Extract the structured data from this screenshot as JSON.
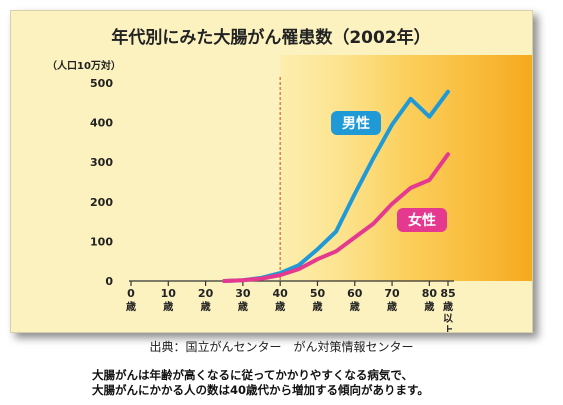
{
  "chart_data": {
    "type": "line",
    "title": "年代別にみた大腸がん罹患数（2002年）",
    "ylabel": "（人口10万対）",
    "ylim": [
      0,
      500
    ],
    "yticks": [
      0,
      100,
      200,
      300,
      400,
      500
    ],
    "x": [
      0,
      5,
      10,
      15,
      20,
      25,
      30,
      35,
      40,
      45,
      50,
      55,
      60,
      65,
      70,
      75,
      80,
      85
    ],
    "xtick_labels": [
      {
        "age": "0",
        "x": 0
      },
      {
        "age": "10",
        "x": 10
      },
      {
        "age": "20",
        "x": 20
      },
      {
        "age": "30",
        "x": 30
      },
      {
        "age": "40",
        "x": 40
      },
      {
        "age": "50",
        "x": 50
      },
      {
        "age": "60",
        "x": 60
      },
      {
        "age": "70",
        "x": 70
      },
      {
        "age": "80",
        "x": 80
      },
      {
        "age": "85",
        "x": 85
      }
    ],
    "xtick_unit": "歳",
    "xtick_last_suffix": [
      "以",
      "上"
    ],
    "reference_line_x": 40,
    "series": [
      {
        "name": "男性",
        "color": "#1f9ad6",
        "values": [
          0,
          0,
          0,
          0,
          0,
          0,
          2,
          8,
          20,
          40,
          80,
          125,
          220,
          310,
          395,
          460,
          415,
          478
        ]
      },
      {
        "name": "女性",
        "color": "#e5398f",
        "values": [
          0,
          0,
          0,
          0,
          0,
          0,
          2,
          6,
          15,
          30,
          55,
          75,
          110,
          145,
          195,
          235,
          255,
          320
        ]
      }
    ],
    "grid": false
  },
  "source": "出典：国立がんセンター　がん対策情報センター",
  "caption": [
    "大腸がんは年齢が高くなるに従ってかかりやすくなる病気で、",
    "大腸がんにかかる人の数は40歳代から増加する傾向があります。"
  ]
}
